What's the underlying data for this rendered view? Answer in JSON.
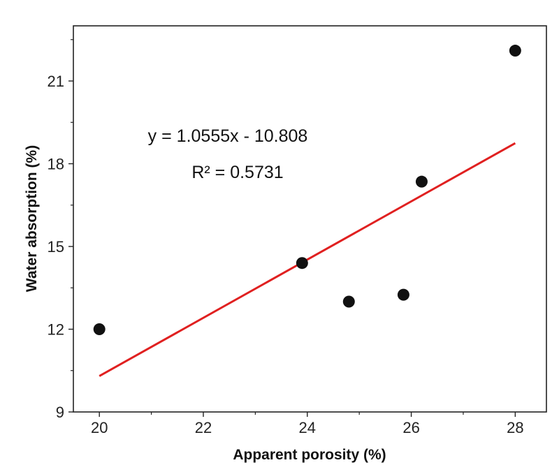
{
  "chart_data": {
    "type": "scatter",
    "xlabel": "Apparent porosity (%)",
    "ylabel": "Water absorption (%)",
    "xlim": [
      19.5,
      28.6
    ],
    "ylim": [
      9,
      23
    ],
    "x_ticks": [
      20,
      22,
      24,
      26,
      28
    ],
    "y_ticks": [
      9,
      12,
      15,
      18,
      21
    ],
    "grid": false,
    "points": [
      {
        "x": 20.0,
        "y": 12.0
      },
      {
        "x": 23.9,
        "y": 14.4
      },
      {
        "x": 24.8,
        "y": 13.0
      },
      {
        "x": 25.85,
        "y": 13.25
      },
      {
        "x": 26.2,
        "y": 17.35
      },
      {
        "x": 28.0,
        "y": 22.1
      }
    ],
    "trendline": {
      "slope": 1.0555,
      "intercept": -10.808,
      "x_range": [
        20,
        28
      ],
      "color": "#e02020"
    },
    "annotations": {
      "equation": "y = 1.0555x - 10.808",
      "r_squared": "R² = 0.5731"
    },
    "marker_color": "#111111"
  }
}
